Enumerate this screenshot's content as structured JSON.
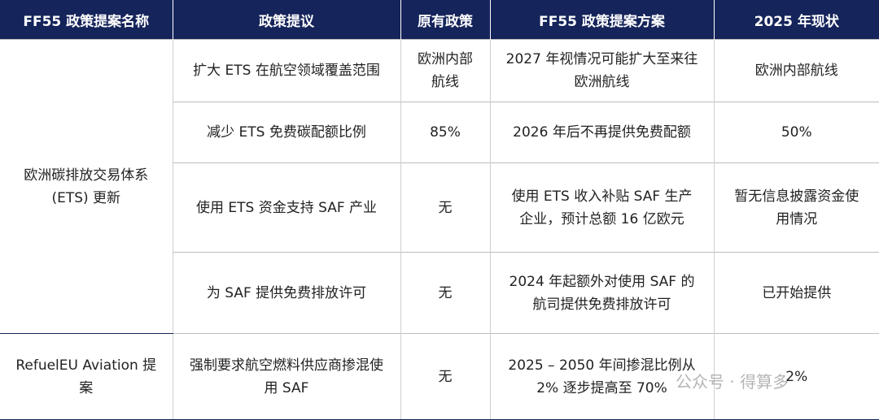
{
  "header": {
    "columns": [
      "FF55 政策提案名称",
      "政策提议",
      "原有政策",
      "FF55 政策提案方案",
      "2025 年现状"
    ]
  },
  "table": {
    "groups": [
      {
        "name": "欧洲碳排放交易体系 (ETS) 更新",
        "rows": [
          [
            "扩大 ETS 在航空领域覆盖范围",
            "欧洲内部航线",
            "2027 年视情况可能扩大至来往欧洲航线",
            "欧洲内部航线"
          ],
          [
            "减少 ETS 免费碳配额比例",
            "85%",
            "2026 年后不再提供免费配额",
            "50%"
          ],
          [
            "使用 ETS 资金支持 SAF 产业",
            "无",
            "使用 ETS 收入补贴 SAF 生产企业，预计总额 16 亿欧元",
            "暂无信息披露资金使用情况"
          ],
          [
            "为 SAF 提供免费排放许可",
            "无",
            "2024 年起额外对使用 SAF 的航司提供免费排放许可",
            "已开始提供"
          ]
        ]
      },
      {
        "name": "RefuelEU Aviation 提案",
        "rows": [
          [
            "强制要求航空燃料供应商掺混使用 SAF",
            "无",
            "2025 – 2050 年间掺混比例从 2% 逐步提高至 70%",
            "2%"
          ]
        ]
      }
    ]
  },
  "watermark": "公众号 · 得算多"
}
